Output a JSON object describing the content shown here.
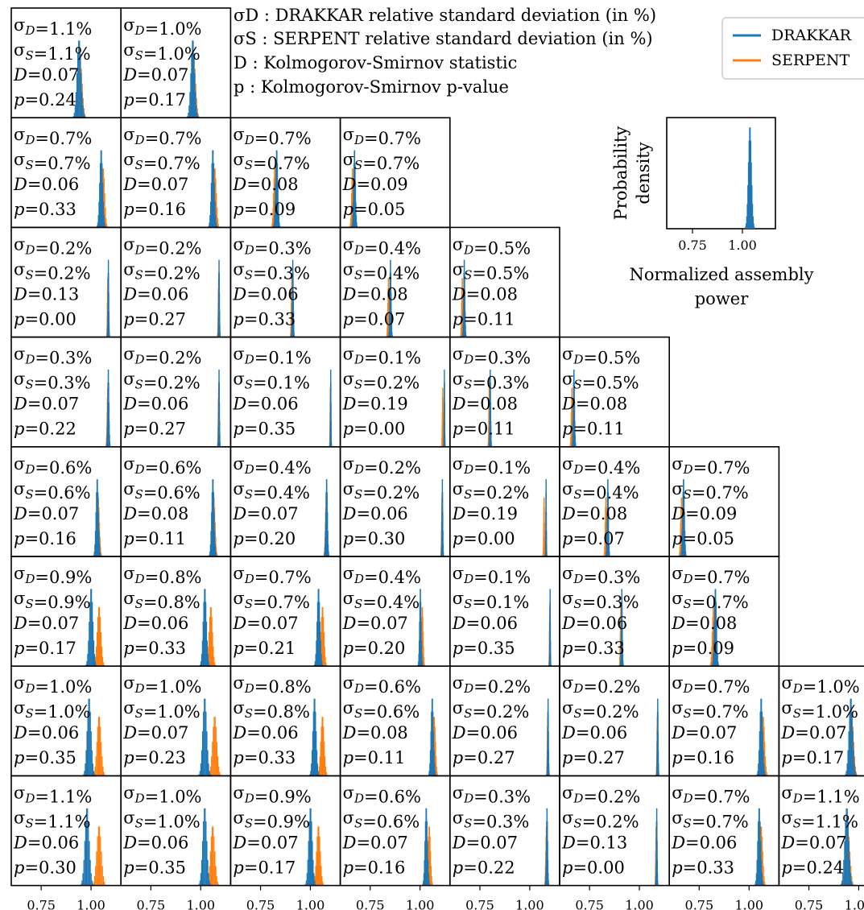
{
  "legend_text": {
    "line1": "σD : DRAKKAR relative standard deviation (in %)",
    "line2": "σS : SERPENT relative standard deviation (in %)",
    "line3": "D : Kolmogorov-Smirnov statistic",
    "line4": "p : Kolmogorov-Smirnov p-value"
  },
  "legend": {
    "placement": "top-right",
    "series": [
      "DRAKKAR",
      "SERPENT"
    ]
  },
  "inset": {
    "ylabel_line1": "Probability",
    "ylabel_line2": "density",
    "xlabel_line1": "Normalized assembly",
    "xlabel_line2": "power",
    "tick_labels": [
      "0.75",
      "1.00"
    ]
  },
  "colors": {
    "drakkar": "#1f77b4",
    "serpent": "#ff7f0e",
    "frame": "#000000"
  },
  "chart_data": {
    "type": "histogram-grid",
    "x_axis": {
      "range": [
        0.6,
        1.15
      ],
      "ticks": [
        0.75,
        1.0
      ],
      "tick_labels": [
        "0.75",
        "1.00"
      ]
    },
    "series": [
      {
        "name": "DRAKKAR",
        "color": "#1f77b4"
      },
      {
        "name": "SERPENT",
        "color": "#ff7f0e"
      }
    ],
    "panels": [
      {
        "row": 0,
        "col": 0,
        "sd": "1.1",
        "ss": "1.1",
        "d": "0.07",
        "p": "0.24",
        "mean_d": 0.94,
        "mean_s": 0.945
      },
      {
        "row": 0,
        "col": 1,
        "sd": "1.0",
        "ss": "1.0",
        "d": "0.07",
        "p": "0.17",
        "mean_d": 0.96,
        "mean_s": 0.965
      },
      {
        "row": 1,
        "col": 0,
        "sd": "0.7",
        "ss": "0.7",
        "d": "0.06",
        "p": "0.33",
        "mean_d": 1.05,
        "mean_s": 1.06
      },
      {
        "row": 1,
        "col": 1,
        "sd": "0.7",
        "ss": "0.7",
        "d": "0.07",
        "p": "0.16",
        "mean_d": 1.06,
        "mean_s": 1.07
      },
      {
        "row": 1,
        "col": 2,
        "sd": "0.7",
        "ss": "0.7",
        "d": "0.08",
        "p": "0.09",
        "mean_d": 0.83,
        "mean_s": 0.82
      },
      {
        "row": 1,
        "col": 3,
        "sd": "0.7",
        "ss": "0.7",
        "d": "0.09",
        "p": "0.05",
        "mean_d": 0.67,
        "mean_s": 0.66
      },
      {
        "row": 2,
        "col": 0,
        "sd": "0.2",
        "ss": "0.2",
        "d": "0.13",
        "p": "0.00",
        "mean_d": 1.085,
        "mean_s": 1.082
      },
      {
        "row": 2,
        "col": 1,
        "sd": "0.2",
        "ss": "0.2",
        "d": "0.06",
        "p": "0.27",
        "mean_d": 1.09,
        "mean_s": 1.088
      },
      {
        "row": 2,
        "col": 2,
        "sd": "0.3",
        "ss": "0.3",
        "d": "0.06",
        "p": "0.33",
        "mean_d": 0.91,
        "mean_s": 0.905
      },
      {
        "row": 2,
        "col": 3,
        "sd": "0.4",
        "ss": "0.4",
        "d": "0.08",
        "p": "0.07",
        "mean_d": 0.85,
        "mean_s": 0.84
      },
      {
        "row": 2,
        "col": 4,
        "sd": "0.5",
        "ss": "0.5",
        "d": "0.08",
        "p": "0.11",
        "mean_d": 0.67,
        "mean_s": 0.66
      },
      {
        "row": 3,
        "col": 0,
        "sd": "0.3",
        "ss": "0.3",
        "d": "0.07",
        "p": "0.22",
        "mean_d": 1.085,
        "mean_s": 1.082
      },
      {
        "row": 3,
        "col": 1,
        "sd": "0.2",
        "ss": "0.2",
        "d": "0.06",
        "p": "0.27",
        "mean_d": 1.09,
        "mean_s": 1.088
      },
      {
        "row": 3,
        "col": 2,
        "sd": "0.1",
        "ss": "0.1",
        "d": "0.06",
        "p": "0.35",
        "mean_d": 1.1,
        "mean_s": 1.098
      },
      {
        "row": 3,
        "col": 3,
        "sd": "0.1",
        "ss": "0.2",
        "d": "0.19",
        "p": "0.00",
        "mean_d": 1.12,
        "mean_s": 1.112
      },
      {
        "row": 3,
        "col": 4,
        "sd": "0.3",
        "ss": "0.3",
        "d": "0.08",
        "p": "0.11",
        "mean_d": 0.8,
        "mean_s": 0.795
      },
      {
        "row": 3,
        "col": 5,
        "sd": "0.5",
        "ss": "0.5",
        "d": "0.08",
        "p": "0.11",
        "mean_d": 0.67,
        "mean_s": 0.66
      },
      {
        "row": 4,
        "col": 0,
        "sd": "0.6",
        "ss": "0.6",
        "d": "0.07",
        "p": "0.16",
        "mean_d": 1.03,
        "mean_s": 1.035
      },
      {
        "row": 4,
        "col": 1,
        "sd": "0.6",
        "ss": "0.6",
        "d": "0.08",
        "p": "0.11",
        "mean_d": 1.06,
        "mean_s": 1.065
      },
      {
        "row": 4,
        "col": 2,
        "sd": "0.4",
        "ss": "0.4",
        "d": "0.07",
        "p": "0.20",
        "mean_d": 1.08,
        "mean_s": 1.078
      },
      {
        "row": 4,
        "col": 3,
        "sd": "0.2",
        "ss": "0.2",
        "d": "0.06",
        "p": "0.30",
        "mean_d": 1.11,
        "mean_s": 1.108
      },
      {
        "row": 4,
        "col": 4,
        "sd": "0.1",
        "ss": "0.2",
        "d": "0.19",
        "p": "0.00",
        "mean_d": 1.08,
        "mean_s": 1.07
      },
      {
        "row": 4,
        "col": 5,
        "sd": "0.4",
        "ss": "0.4",
        "d": "0.08",
        "p": "0.07",
        "mean_d": 0.84,
        "mean_s": 0.83
      },
      {
        "row": 4,
        "col": 6,
        "sd": "0.7",
        "ss": "0.7",
        "d": "0.09",
        "p": "0.05",
        "mean_d": 0.67,
        "mean_s": 0.66
      },
      {
        "row": 5,
        "col": 0,
        "sd": "0.9",
        "ss": "0.9",
        "d": "0.07",
        "p": "0.17",
        "mean_d": 1.0,
        "mean_s": 1.04
      },
      {
        "row": 5,
        "col": 1,
        "sd": "0.8",
        "ss": "0.8",
        "d": "0.06",
        "p": "0.33",
        "mean_d": 1.02,
        "mean_s": 1.05
      },
      {
        "row": 5,
        "col": 2,
        "sd": "0.7",
        "ss": "0.7",
        "d": "0.07",
        "p": "0.21",
        "mean_d": 1.04,
        "mean_s": 1.06
      },
      {
        "row": 5,
        "col": 3,
        "sd": "0.4",
        "ss": "0.4",
        "d": "0.07",
        "p": "0.20",
        "mean_d": 1.0,
        "mean_s": 1.01
      },
      {
        "row": 5,
        "col": 4,
        "sd": "0.1",
        "ss": "0.1",
        "d": "0.06",
        "p": "0.35",
        "mean_d": 1.1,
        "mean_s": 1.098
      },
      {
        "row": 5,
        "col": 5,
        "sd": "0.3",
        "ss": "0.3",
        "d": "0.06",
        "p": "0.33",
        "mean_d": 0.91,
        "mean_s": 0.905
      },
      {
        "row": 5,
        "col": 6,
        "sd": "0.7",
        "ss": "0.7",
        "d": "0.08",
        "p": "0.09",
        "mean_d": 0.83,
        "mean_s": 0.82
      },
      {
        "row": 6,
        "col": 0,
        "sd": "1.0",
        "ss": "1.0",
        "d": "0.06",
        "p": "0.35",
        "mean_d": 0.99,
        "mean_s": 1.04
      },
      {
        "row": 6,
        "col": 1,
        "sd": "1.0",
        "ss": "1.0",
        "d": "0.07",
        "p": "0.23",
        "mean_d": 1.02,
        "mean_s": 1.07
      },
      {
        "row": 6,
        "col": 2,
        "sd": "0.8",
        "ss": "0.8",
        "d": "0.06",
        "p": "0.33",
        "mean_d": 1.02,
        "mean_s": 1.06
      },
      {
        "row": 6,
        "col": 3,
        "sd": "0.6",
        "ss": "0.6",
        "d": "0.08",
        "p": "0.11",
        "mean_d": 1.06,
        "mean_s": 1.07
      },
      {
        "row": 6,
        "col": 4,
        "sd": "0.2",
        "ss": "0.2",
        "d": "0.06",
        "p": "0.27",
        "mean_d": 1.09,
        "mean_s": 1.088
      },
      {
        "row": 6,
        "col": 5,
        "sd": "0.2",
        "ss": "0.2",
        "d": "0.06",
        "p": "0.27",
        "mean_d": 1.09,
        "mean_s": 1.088
      },
      {
        "row": 6,
        "col": 6,
        "sd": "0.7",
        "ss": "0.7",
        "d": "0.07",
        "p": "0.16",
        "mean_d": 1.06,
        "mean_s": 1.07
      },
      {
        "row": 6,
        "col": 7,
        "sd": "1.0",
        "ss": "1.0",
        "d": "0.07",
        "p": "0.17",
        "mean_d": 0.96,
        "mean_s": 0.965
      },
      {
        "row": 7,
        "col": 0,
        "sd": "1.1",
        "ss": "1.1",
        "d": "0.06",
        "p": "0.30",
        "mean_d": 0.98,
        "mean_s": 1.04
      },
      {
        "row": 7,
        "col": 1,
        "sd": "1.0",
        "ss": "1.0",
        "d": "0.06",
        "p": "0.35",
        "mean_d": 1.02,
        "mean_s": 1.06
      },
      {
        "row": 7,
        "col": 2,
        "sd": "0.9",
        "ss": "0.9",
        "d": "0.07",
        "p": "0.17",
        "mean_d": 1.0,
        "mean_s": 1.04
      },
      {
        "row": 7,
        "col": 3,
        "sd": "0.6",
        "ss": "0.6",
        "d": "0.07",
        "p": "0.16",
        "mean_d": 1.03,
        "mean_s": 1.045
      },
      {
        "row": 7,
        "col": 4,
        "sd": "0.3",
        "ss": "0.3",
        "d": "0.07",
        "p": "0.22",
        "mean_d": 1.085,
        "mean_s": 1.082
      },
      {
        "row": 7,
        "col": 5,
        "sd": "0.2",
        "ss": "0.2",
        "d": "0.13",
        "p": "0.00",
        "mean_d": 1.085,
        "mean_s": 1.082
      },
      {
        "row": 7,
        "col": 6,
        "sd": "0.7",
        "ss": "0.7",
        "d": "0.06",
        "p": "0.33",
        "mean_d": 1.05,
        "mean_s": 1.06
      },
      {
        "row": 7,
        "col": 7,
        "sd": "1.1",
        "ss": "1.1",
        "d": "0.07",
        "p": "0.24",
        "mean_d": 0.94,
        "mean_s": 0.945
      }
    ]
  }
}
